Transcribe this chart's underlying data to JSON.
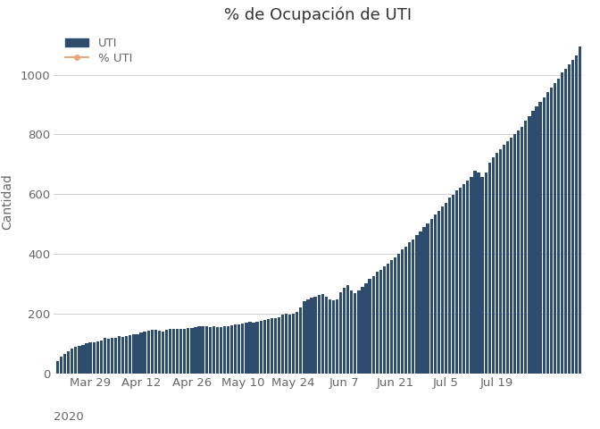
{
  "title": "% de Ocupación de UTI",
  "ylabel": "Cantidad",
  "bar_color": "#2e4d6e",
  "line_color": "#e8a87c",
  "background_color": "#ffffff",
  "grid_color": "#d0d0d0",
  "legend_labels": [
    "UTI",
    "% UTI"
  ],
  "values": [
    40,
    55,
    65,
    75,
    82,
    88,
    92,
    96,
    100,
    105,
    105,
    108,
    110,
    118,
    115,
    118,
    120,
    125,
    122,
    125,
    128,
    132,
    130,
    136,
    140,
    142,
    147,
    145,
    143,
    140,
    145,
    148,
    150,
    148,
    148,
    150,
    152,
    153,
    155,
    157,
    158,
    157,
    155,
    158,
    155,
    155,
    157,
    158,
    160,
    163,
    165,
    168,
    170,
    172,
    170,
    172,
    175,
    178,
    180,
    183,
    185,
    188,
    195,
    200,
    195,
    200,
    205,
    220,
    240,
    247,
    252,
    257,
    262,
    265,
    255,
    248,
    243,
    248,
    270,
    285,
    295,
    278,
    268,
    278,
    288,
    300,
    315,
    325,
    340,
    345,
    358,
    368,
    378,
    388,
    400,
    415,
    425,
    440,
    448,
    462,
    475,
    490,
    503,
    518,
    532,
    545,
    558,
    572,
    588,
    598,
    612,
    622,
    635,
    645,
    658,
    678,
    672,
    658,
    672,
    705,
    725,
    740,
    750,
    765,
    778,
    788,
    800,
    812,
    825,
    845,
    862,
    878,
    893,
    908,
    923,
    942,
    958,
    972,
    988,
    1008,
    1020,
    1035,
    1050,
    1065,
    1095
  ],
  "x_tick_labels": [
    "Mar 29",
    "Apr 12",
    "Apr 26",
    "May 10",
    "May 24",
    "Jun 7",
    "Jun 21",
    "Jul 5",
    "Jul 19"
  ],
  "x_tick_positions": [
    9,
    23,
    37,
    51,
    65,
    79,
    93,
    107,
    121
  ],
  "ylim": [
    0,
    1150
  ],
  "yticks": [
    0,
    200,
    400,
    600,
    800,
    1000
  ],
  "year_label": "2020",
  "title_fontsize": 13,
  "axis_fontsize": 10,
  "tick_fontsize": 9.5
}
